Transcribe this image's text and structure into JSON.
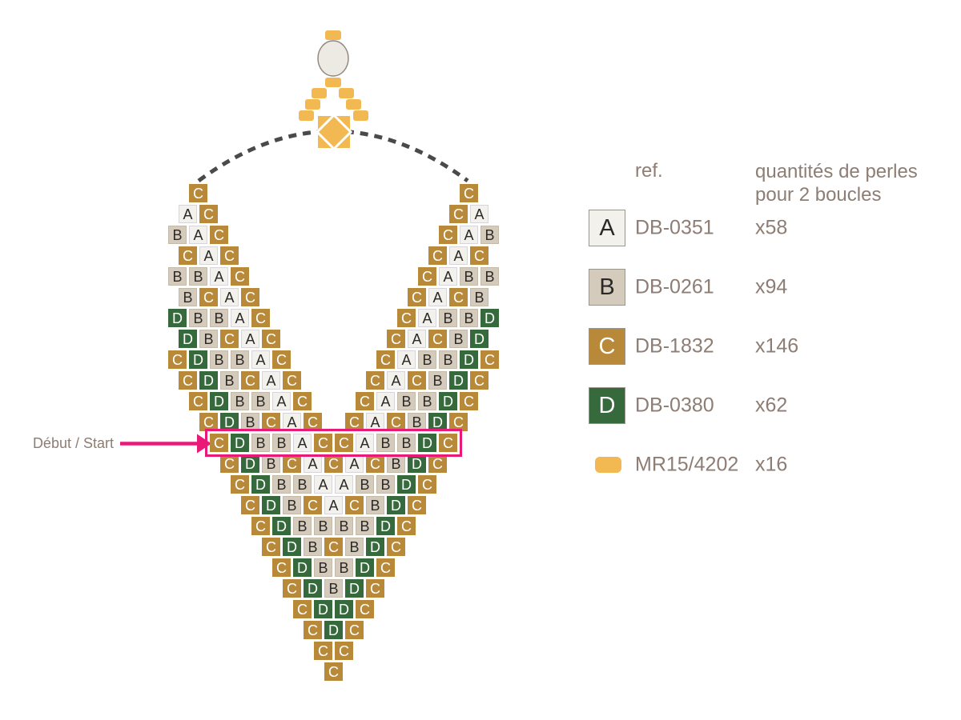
{
  "palette": {
    "beads": {
      "A": {
        "fill": "#f3f1ec",
        "border": "#d7d5da",
        "text": "#2b2926"
      },
      "B": {
        "fill": "#d4cbbd",
        "border": "#c3baaa",
        "text": "#2b2926"
      },
      "C": {
        "fill": "#b9893a",
        "border": "#b9893a",
        "text": "#ffffff"
      },
      "D": {
        "fill": "#366a3d",
        "border": "#366a3d",
        "text": "#ffffff"
      }
    },
    "amber": "#f2b851",
    "pink": "#e91a77",
    "dash_gray": "#4a4a4a",
    "text_taupe": "#8d7d74",
    "oval_fill": "#edeae3",
    "oval_stroke": "#93897f",
    "white": "#ffffff",
    "legend_swatch_border": "#9b968c",
    "letter_dark": "#2b2926"
  },
  "start_label": "Début / Start",
  "legend": {
    "ref_header": "ref.",
    "qty_header_line1": "quantités de perles",
    "qty_header_line2": "pour 2 boucles",
    "items": [
      {
        "letter": "A",
        "ref": "DB-0351",
        "qty": "x58",
        "swatch": "square"
      },
      {
        "letter": "B",
        "ref": "DB-0261",
        "qty": "x94",
        "swatch": "square"
      },
      {
        "letter": "C",
        "ref": "DB-1832",
        "qty": "x146",
        "swatch": "square"
      },
      {
        "letter": "D",
        "ref": "DB-0380",
        "qty": "x62",
        "swatch": "square"
      },
      {
        "letter": null,
        "ref": "MR15/4202",
        "qty": "x16",
        "swatch": "pill"
      }
    ]
  },
  "pattern": {
    "segments": [
      {
        "row": 1,
        "indent": 2,
        "side": "left",
        "beads": [
          "C"
        ]
      },
      {
        "row": 2,
        "indent": 1,
        "side": "left",
        "beads": [
          "A",
          "C"
        ]
      },
      {
        "row": 3,
        "indent": 0,
        "side": "left",
        "beads": [
          "B",
          "A",
          "C"
        ]
      },
      {
        "row": 4,
        "indent": 1,
        "side": "left",
        "beads": [
          "C",
          "A",
          "C"
        ]
      },
      {
        "row": 5,
        "indent": 0,
        "side": "left",
        "beads": [
          "B",
          "B",
          "A",
          "C"
        ]
      },
      {
        "row": 6,
        "indent": 1,
        "side": "left",
        "beads": [
          "B",
          "C",
          "A",
          "C"
        ]
      },
      {
        "row": 7,
        "indent": 0,
        "side": "left",
        "beads": [
          "D",
          "B",
          "B",
          "A",
          "C"
        ]
      },
      {
        "row": 8,
        "indent": 1,
        "side": "left",
        "beads": [
          "D",
          "B",
          "C",
          "A",
          "C"
        ]
      },
      {
        "row": 9,
        "indent": 0,
        "side": "left",
        "beads": [
          "C",
          "D",
          "B",
          "B",
          "A",
          "C"
        ]
      },
      {
        "row": 10,
        "indent": 1,
        "side": "left",
        "beads": [
          "C",
          "D",
          "B",
          "C",
          "A",
          "C"
        ]
      },
      {
        "row": 11,
        "indent": 2,
        "side": "left",
        "beads": [
          "C",
          "D",
          "B",
          "B",
          "A",
          "C"
        ]
      },
      {
        "row": 12,
        "indent": 3,
        "side": "left",
        "beads": [
          "C",
          "D",
          "B",
          "C",
          "A",
          "C"
        ]
      },
      {
        "row": 1,
        "indent": 28,
        "side": "right",
        "beads": [
          "C"
        ]
      },
      {
        "row": 2,
        "indent": 27,
        "side": "right",
        "beads": [
          "C",
          "A"
        ]
      },
      {
        "row": 3,
        "indent": 26,
        "side": "right",
        "beads": [
          "C",
          "A",
          "B"
        ]
      },
      {
        "row": 4,
        "indent": 25,
        "side": "right",
        "beads": [
          "C",
          "A",
          "C"
        ]
      },
      {
        "row": 5,
        "indent": 24,
        "side": "right",
        "beads": [
          "C",
          "A",
          "B",
          "B"
        ]
      },
      {
        "row": 6,
        "indent": 23,
        "side": "right",
        "beads": [
          "C",
          "A",
          "C",
          "B"
        ]
      },
      {
        "row": 7,
        "indent": 22,
        "side": "right",
        "beads": [
          "C",
          "A",
          "B",
          "B",
          "D"
        ]
      },
      {
        "row": 8,
        "indent": 21,
        "side": "right",
        "beads": [
          "C",
          "A",
          "C",
          "B",
          "D"
        ]
      },
      {
        "row": 9,
        "indent": 20,
        "side": "right",
        "beads": [
          "C",
          "A",
          "B",
          "B",
          "D",
          "C"
        ]
      },
      {
        "row": 10,
        "indent": 19,
        "side": "right",
        "beads": [
          "C",
          "A",
          "C",
          "B",
          "D",
          "C"
        ]
      },
      {
        "row": 11,
        "indent": 18,
        "side": "right",
        "beads": [
          "C",
          "A",
          "B",
          "B",
          "D",
          "C"
        ]
      },
      {
        "row": 12,
        "indent": 17,
        "side": "right",
        "beads": [
          "C",
          "A",
          "C",
          "B",
          "D",
          "C"
        ]
      },
      {
        "row": 13,
        "indent": 4,
        "side": "center",
        "highlight": true,
        "beads": [
          "C",
          "D",
          "B",
          "B",
          "A",
          "C",
          "C",
          "A",
          "B",
          "B",
          "D",
          "C"
        ]
      },
      {
        "row": 14,
        "indent": 5,
        "side": "center",
        "beads": [
          "C",
          "D",
          "B",
          "C",
          "A",
          "C",
          "A",
          "C",
          "B",
          "D",
          "C"
        ]
      },
      {
        "row": 15,
        "indent": 6,
        "side": "center",
        "beads": [
          "C",
          "D",
          "B",
          "B",
          "A",
          "A",
          "B",
          "B",
          "D",
          "C"
        ]
      },
      {
        "row": 16,
        "indent": 7,
        "side": "center",
        "beads": [
          "C",
          "D",
          "B",
          "C",
          "A",
          "C",
          "B",
          "D",
          "C"
        ]
      },
      {
        "row": 17,
        "indent": 8,
        "side": "center",
        "beads": [
          "C",
          "D",
          "B",
          "B",
          "B",
          "B",
          "D",
          "C"
        ]
      },
      {
        "row": 18,
        "indent": 9,
        "side": "center",
        "beads": [
          "C",
          "D",
          "B",
          "C",
          "B",
          "D",
          "C"
        ]
      },
      {
        "row": 19,
        "indent": 10,
        "side": "center",
        "beads": [
          "C",
          "D",
          "B",
          "B",
          "D",
          "C"
        ]
      },
      {
        "row": 20,
        "indent": 11,
        "side": "center",
        "beads": [
          "C",
          "D",
          "B",
          "D",
          "C"
        ]
      },
      {
        "row": 21,
        "indent": 12,
        "side": "center",
        "beads": [
          "C",
          "D",
          "D",
          "C"
        ]
      },
      {
        "row": 22,
        "indent": 13,
        "side": "center",
        "beads": [
          "C",
          "D",
          "C"
        ]
      },
      {
        "row": 23,
        "indent": 14,
        "side": "center",
        "beads": [
          "C",
          "C"
        ]
      },
      {
        "row": 24,
        "indent": 15,
        "side": "center",
        "beads": [
          "C"
        ]
      }
    ]
  }
}
